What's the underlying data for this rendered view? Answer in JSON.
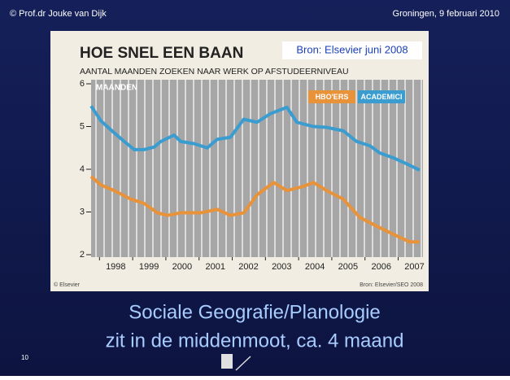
{
  "slide": {
    "author": "© Prof.dr Jouke van Dijk",
    "place_date": "Groningen, 9 februari 2010",
    "page_number": "10",
    "body_line_1": "Sociale Geografie/Planologie",
    "body_line_2": "zit in de middenmoot, ca. 4 maand"
  },
  "chart_data": {
    "type": "line",
    "title": "HOE SNEL EEN BAAN",
    "subtitle": "AANTAL MAANDEN ZOEKEN NAAR WERK OP AFSTUDEERNIVEAU",
    "y_label": "MAANDEN",
    "source_overlay": "Bron: Elsevier juni 2008",
    "credit_left": "© Elsevier",
    "credit_right": "Bron: Elsevier/SEO 2008",
    "xlim": [
      1997.6,
      2007.6
    ],
    "xticks": [
      1998,
      1999,
      2000,
      2001,
      2002,
      2003,
      2004,
      2005,
      2006,
      2007
    ],
    "ylim": [
      2,
      6
    ],
    "yticks": [
      2,
      3,
      4,
      5,
      6
    ],
    "legend": "top-right",
    "series": [
      {
        "name": "HBO'ERS",
        "color": "#e8923a",
        "x": [
          1997.6,
          1997.9,
          1998.3,
          1998.8,
          1999.2,
          1999.6,
          1999.9,
          2000.3,
          2000.9,
          2001.4,
          2001.8,
          2002.2,
          2002.6,
          2003.1,
          2003.5,
          2004.0,
          2004.3,
          2004.7,
          2005.2,
          2005.7,
          2006.2,
          2006.7,
          2007.2,
          2007.5
        ],
        "values": [
          3.83,
          3.63,
          3.5,
          3.3,
          3.2,
          2.98,
          2.92,
          2.98,
          2.98,
          3.06,
          2.92,
          2.98,
          3.4,
          3.69,
          3.5,
          3.6,
          3.69,
          3.5,
          3.3,
          2.87,
          2.67,
          2.48,
          2.3,
          2.3
        ]
      },
      {
        "name": "ACADEMICI",
        "color": "#3a9ccf",
        "x": [
          1997.6,
          1997.9,
          1998.3,
          1998.6,
          1998.9,
          1999.2,
          1999.5,
          1999.7,
          2000.1,
          2000.3,
          2000.7,
          2001.1,
          2001.4,
          2001.8,
          2002.2,
          2002.6,
          2003.0,
          2003.5,
          2003.8,
          2004.3,
          2004.7,
          2005.2,
          2005.6,
          2006.0,
          2006.3,
          2006.7,
          2007.1,
          2007.5
        ],
        "values": [
          5.48,
          5.13,
          4.85,
          4.65,
          4.46,
          4.46,
          4.52,
          4.65,
          4.8,
          4.65,
          4.6,
          4.5,
          4.7,
          4.75,
          5.17,
          5.1,
          5.3,
          5.45,
          5.1,
          5.0,
          4.98,
          4.9,
          4.65,
          4.55,
          4.38,
          4.27,
          4.13,
          3.98
        ]
      }
    ]
  }
}
